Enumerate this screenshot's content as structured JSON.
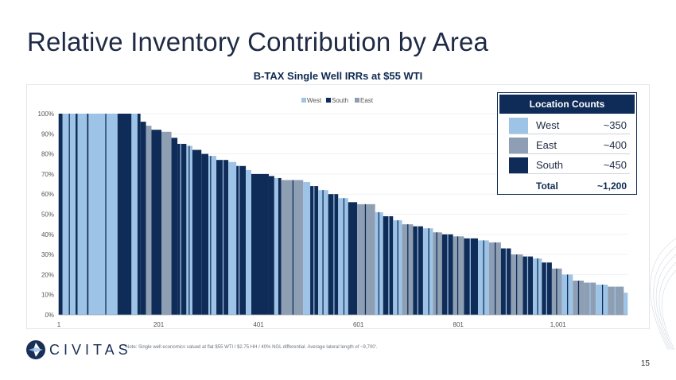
{
  "slide": {
    "title": "Relative Inventory Contribution by Area",
    "page_number": "15",
    "note": "Note: Single well economics valued at flat $55 WTI / $2.75 HH / 40% NGL differential. Average lateral length of ~9,700'.",
    "logo_text": "CIVITAS"
  },
  "colors": {
    "west": "#9dc4e6",
    "south": "#0f2b57",
    "east": "#8e9fb4",
    "title": "#1f2a44",
    "accent": "#0f2b57"
  },
  "location_counts": {
    "header": "Location Counts",
    "rows": [
      {
        "name": "West",
        "count": "~350",
        "color_key": "west"
      },
      {
        "name": "East",
        "count": "~400",
        "color_key": "east"
      },
      {
        "name": "South",
        "count": "~450",
        "color_key": "south"
      }
    ],
    "total_label": "Total",
    "total_value": "~1,200"
  },
  "chart_data": {
    "type": "bar",
    "title": "B-TAX Single Well IRRs at $55 WTI",
    "xlabel": "",
    "ylabel": "",
    "ylim": [
      0,
      100
    ],
    "y_ticks": [
      "0%",
      "10%",
      "20%",
      "30%",
      "40%",
      "50%",
      "60%",
      "70%",
      "80%",
      "90%",
      "100%"
    ],
    "x_ticks": [
      {
        "value": 1,
        "label": "1"
      },
      {
        "value": 201,
        "label": "201"
      },
      {
        "value": 401,
        "label": "401"
      },
      {
        "value": 601,
        "label": "601"
      },
      {
        "value": 801,
        "label": "801"
      },
      {
        "value": 1001,
        "label": "1,001"
      }
    ],
    "x_range": [
      1,
      1140
    ],
    "legend": [
      {
        "name": "West",
        "color_key": "west"
      },
      {
        "name": "South",
        "color_key": "south"
      },
      {
        "name": "East",
        "color_key": "east"
      }
    ],
    "series_note": "Sorted single-well IRR (%) by location rank; each segment colored by area",
    "segments": [
      {
        "start": 1,
        "end": 8,
        "area": "south",
        "irr": 100
      },
      {
        "start": 9,
        "end": 34,
        "area": "west",
        "irr": 100
      },
      {
        "start": 35,
        "end": 38,
        "area": "south",
        "irr": 100
      },
      {
        "start": 39,
        "end": 57,
        "area": "west",
        "irr": 100
      },
      {
        "start": 58,
        "end": 60,
        "area": "south",
        "irr": 100
      },
      {
        "start": 61,
        "end": 118,
        "area": "west",
        "irr": 100
      },
      {
        "start": 119,
        "end": 146,
        "area": "south",
        "irr": 100
      },
      {
        "start": 147,
        "end": 158,
        "area": "west",
        "irr": 100
      },
      {
        "start": 159,
        "end": 164,
        "area": "south",
        "irr": 100
      },
      {
        "start": 165,
        "end": 175,
        "area": "south",
        "irr": 96
      },
      {
        "start": 176,
        "end": 186,
        "area": "east",
        "irr": 94
      },
      {
        "start": 187,
        "end": 206,
        "area": "south",
        "irr": 92
      },
      {
        "start": 207,
        "end": 226,
        "area": "east",
        "irr": 91
      },
      {
        "start": 227,
        "end": 238,
        "area": "south",
        "irr": 88
      },
      {
        "start": 239,
        "end": 256,
        "area": "south",
        "irr": 85
      },
      {
        "start": 257,
        "end": 268,
        "area": "west",
        "irr": 84
      },
      {
        "start": 269,
        "end": 286,
        "area": "south",
        "irr": 82
      },
      {
        "start": 287,
        "end": 300,
        "area": "south",
        "irr": 80
      },
      {
        "start": 301,
        "end": 316,
        "area": "west",
        "irr": 79
      },
      {
        "start": 317,
        "end": 340,
        "area": "south",
        "irr": 77
      },
      {
        "start": 341,
        "end": 356,
        "area": "west",
        "irr": 76
      },
      {
        "start": 357,
        "end": 375,
        "area": "south",
        "irr": 74
      },
      {
        "start": 376,
        "end": 386,
        "area": "west",
        "irr": 72
      },
      {
        "start": 387,
        "end": 421,
        "area": "south",
        "irr": 70
      },
      {
        "start": 422,
        "end": 432,
        "area": "south",
        "irr": 69
      },
      {
        "start": 433,
        "end": 440,
        "area": "west",
        "irr": 68
      },
      {
        "start": 441,
        "end": 446,
        "area": "south",
        "irr": 68
      },
      {
        "start": 447,
        "end": 490,
        "area": "east",
        "irr": 67
      },
      {
        "start": 491,
        "end": 504,
        "area": "west",
        "irr": 66
      },
      {
        "start": 505,
        "end": 520,
        "area": "south",
        "irr": 64
      },
      {
        "start": 521,
        "end": 540,
        "area": "west",
        "irr": 62
      },
      {
        "start": 541,
        "end": 560,
        "area": "south",
        "irr": 60
      },
      {
        "start": 561,
        "end": 580,
        "area": "west",
        "irr": 58
      },
      {
        "start": 581,
        "end": 598,
        "area": "south",
        "irr": 56
      },
      {
        "start": 599,
        "end": 634,
        "area": "east",
        "irr": 55
      },
      {
        "start": 635,
        "end": 650,
        "area": "west",
        "irr": 51
      },
      {
        "start": 651,
        "end": 670,
        "area": "south",
        "irr": 49
      },
      {
        "start": 671,
        "end": 688,
        "area": "west",
        "irr": 47
      },
      {
        "start": 689,
        "end": 710,
        "area": "east",
        "irr": 45
      },
      {
        "start": 711,
        "end": 730,
        "area": "south",
        "irr": 44
      },
      {
        "start": 731,
        "end": 750,
        "area": "west",
        "irr": 43
      },
      {
        "start": 751,
        "end": 768,
        "area": "east",
        "irr": 41
      },
      {
        "start": 769,
        "end": 790,
        "area": "south",
        "irr": 40
      },
      {
        "start": 791,
        "end": 812,
        "area": "east",
        "irr": 39
      },
      {
        "start": 813,
        "end": 840,
        "area": "south",
        "irr": 38
      },
      {
        "start": 841,
        "end": 862,
        "area": "west",
        "irr": 37
      },
      {
        "start": 863,
        "end": 886,
        "area": "east",
        "irr": 36
      },
      {
        "start": 887,
        "end": 906,
        "area": "south",
        "irr": 33
      },
      {
        "start": 907,
        "end": 930,
        "area": "east",
        "irr": 30
      },
      {
        "start": 931,
        "end": 950,
        "area": "south",
        "irr": 29
      },
      {
        "start": 951,
        "end": 968,
        "area": "west",
        "irr": 28
      },
      {
        "start": 969,
        "end": 988,
        "area": "south",
        "irr": 26
      },
      {
        "start": 989,
        "end": 1008,
        "area": "east",
        "irr": 23
      },
      {
        "start": 1009,
        "end": 1030,
        "area": "west",
        "irr": 20
      },
      {
        "start": 1031,
        "end": 1052,
        "area": "east",
        "irr": 17
      },
      {
        "start": 1053,
        "end": 1076,
        "area": "east",
        "irr": 16
      },
      {
        "start": 1077,
        "end": 1100,
        "area": "west",
        "irr": 15
      },
      {
        "start": 1101,
        "end": 1132,
        "area": "east",
        "irr": 14
      },
      {
        "start": 1133,
        "end": 1140,
        "area": "west",
        "irr": 11
      }
    ],
    "stripes": [
      {
        "rank": 22,
        "area": "south"
      },
      {
        "rank": 95,
        "area": "south"
      },
      {
        "rank": 245,
        "area": "west"
      },
      {
        "rank": 262,
        "area": "south"
      },
      {
        "rank": 305,
        "area": "south"
      },
      {
        "rank": 330,
        "area": "west"
      },
      {
        "rank": 362,
        "area": "west"
      },
      {
        "rank": 470,
        "area": "south"
      },
      {
        "rank": 512,
        "area": "west"
      },
      {
        "rank": 530,
        "area": "south"
      },
      {
        "rank": 552,
        "area": "west"
      },
      {
        "rank": 572,
        "area": "south"
      },
      {
        "rank": 615,
        "area": "south"
      },
      {
        "rank": 642,
        "area": "south"
      },
      {
        "rank": 662,
        "area": "west"
      },
      {
        "rank": 680,
        "area": "south"
      },
      {
        "rank": 700,
        "area": "south"
      },
      {
        "rank": 720,
        "area": "west"
      },
      {
        "rank": 742,
        "area": "south"
      },
      {
        "rank": 758,
        "area": "south"
      },
      {
        "rank": 780,
        "area": "west"
      },
      {
        "rank": 800,
        "area": "south"
      },
      {
        "rank": 825,
        "area": "west"
      },
      {
        "rank": 852,
        "area": "south"
      },
      {
        "rank": 875,
        "area": "south"
      },
      {
        "rank": 897,
        "area": "west"
      },
      {
        "rank": 918,
        "area": "south"
      },
      {
        "rank": 940,
        "area": "west"
      },
      {
        "rank": 960,
        "area": "south"
      },
      {
        "rank": 978,
        "area": "west"
      },
      {
        "rank": 998,
        "area": "south"
      },
      {
        "rank": 1020,
        "area": "south"
      },
      {
        "rank": 1042,
        "area": "south"
      },
      {
        "rank": 1065,
        "area": "west"
      },
      {
        "rank": 1090,
        "area": "south"
      },
      {
        "rank": 1115,
        "area": "west"
      }
    ]
  }
}
